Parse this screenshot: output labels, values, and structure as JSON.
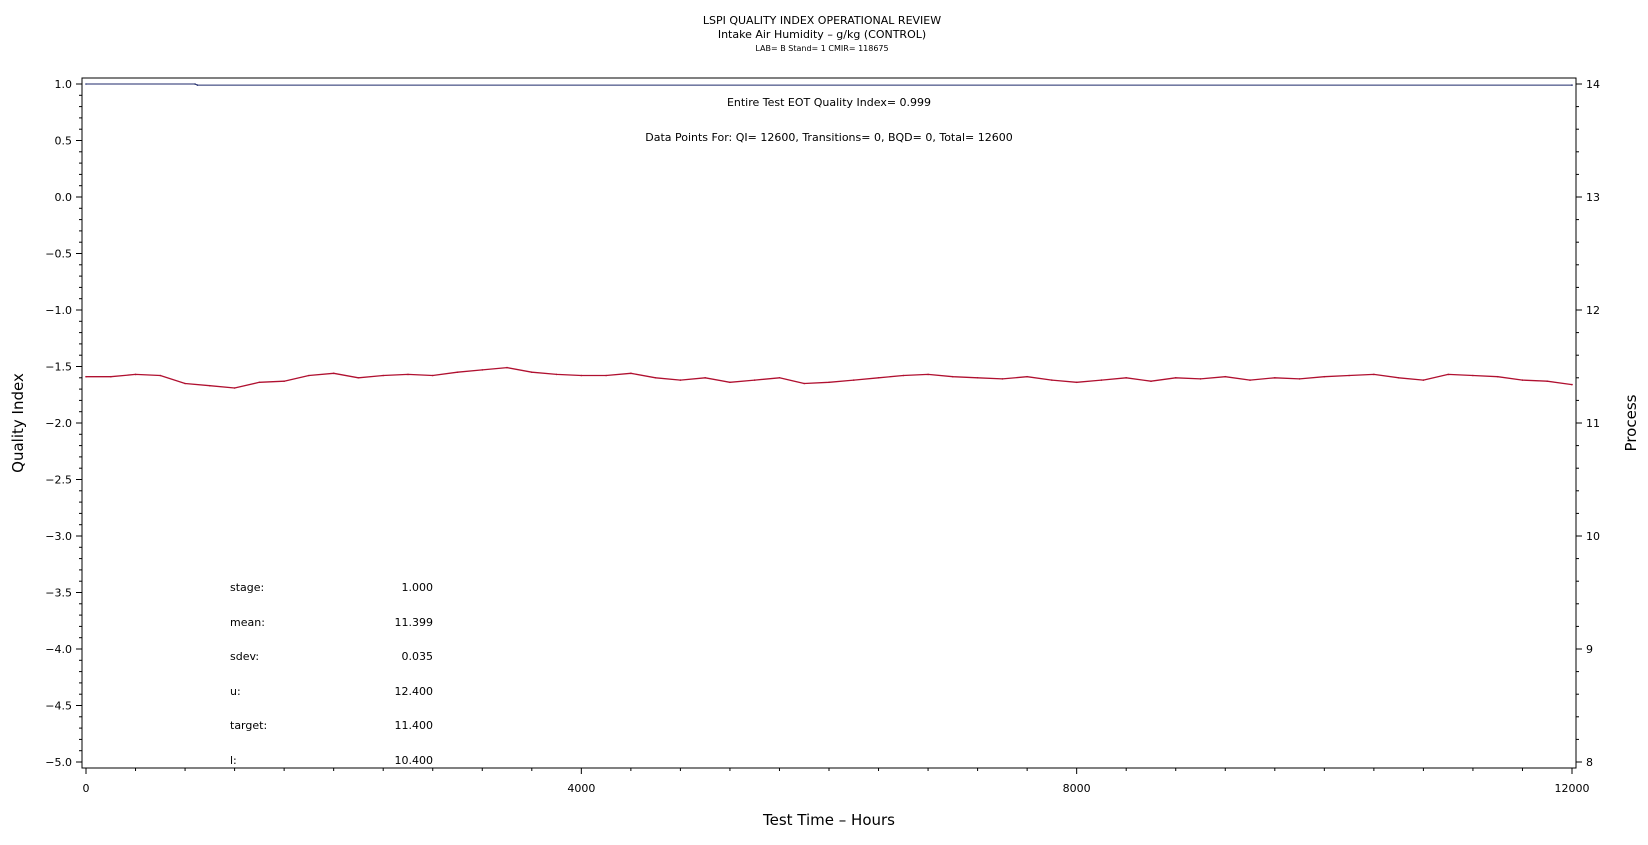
{
  "header": {
    "title": "LSPI QUALITY INDEX OPERATIONAL REVIEW",
    "subtitle": "Intake Air Humidity – g/kg (CONTROL)",
    "meta": "LAB= B Stand= 1 CMIR= 118675"
  },
  "annotations": {
    "eot": "Entire Test EOT Quality Index=   0.999",
    "points": "Data Points For: QI= 12600, Transitions=     0, BQD=     0, Total= 12600"
  },
  "stats": [
    {
      "label": "stage:",
      "value": "1.000"
    },
    {
      "label": "mean:",
      "value": "11.399"
    },
    {
      "label": "sdev:",
      "value": "0.035"
    },
    {
      "label": "u:",
      "value": "12.400"
    },
    {
      "label": "target:",
      "value": "11.400"
    },
    {
      "label": "l:",
      "value": "10.400"
    }
  ],
  "colors": {
    "quality": "#1f2a6b",
    "process": "#b01030"
  },
  "chart_data": {
    "type": "line",
    "xlabel": "Test Time – Hours",
    "ylabel": "Quality Index",
    "y2label": "Process",
    "xlim": [
      0,
      12000
    ],
    "ylim": [
      -5,
      1
    ],
    "y2lim": [
      8,
      14
    ],
    "xticks": [
      0,
      4000,
      8000,
      12000
    ],
    "yticks": [
      1.0,
      0.5,
      0.0,
      -0.5,
      -1.0,
      -1.5,
      -2.0,
      -2.5,
      -3.0,
      -3.5,
      -4.0,
      -4.5,
      -5.0
    ],
    "ytick_labels": [
      "1.0",
      "0.5",
      "0.0",
      "−0.5",
      "−1.0",
      "−1.5",
      "−2.0",
      "−2.5",
      "−3.0",
      "−3.5",
      "−4.0",
      "−4.5",
      "−5.0"
    ],
    "y2ticks": [
      14,
      13,
      12,
      11,
      10,
      9,
      8
    ],
    "y2tick_labels": [
      "14",
      "13",
      "12",
      "11",
      "10",
      "9",
      "8"
    ],
    "grid": false,
    "series": [
      {
        "axis": "left",
        "x": [
          0,
          880,
          900,
          12000
        ],
        "y": [
          1.0,
          1.0,
          0.99,
          0.99
        ]
      },
      {
        "axis": "right",
        "x": [
          0,
          200,
          400,
          600,
          800,
          1000,
          1200,
          1400,
          1600,
          1800,
          2000,
          2200,
          2400,
          2600,
          2800,
          3000,
          3200,
          3400,
          3600,
          3800,
          4000,
          4200,
          4400,
          4600,
          4800,
          5000,
          5200,
          5400,
          5600,
          5800,
          6000,
          6200,
          6400,
          6600,
          6800,
          7000,
          7200,
          7400,
          7600,
          7800,
          8000,
          8200,
          8400,
          8600,
          8800,
          9000,
          9200,
          9400,
          9600,
          9800,
          10000,
          10200,
          10400,
          10600,
          10800,
          11000,
          11200,
          11400,
          11600,
          11800,
          12000
        ],
        "y": [
          11.41,
          11.41,
          11.43,
          11.42,
          11.35,
          11.33,
          11.31,
          11.36,
          11.37,
          11.42,
          11.44,
          11.4,
          11.42,
          11.43,
          11.42,
          11.45,
          11.47,
          11.49,
          11.45,
          11.43,
          11.42,
          11.42,
          11.44,
          11.4,
          11.38,
          11.4,
          11.36,
          11.38,
          11.4,
          11.35,
          11.36,
          11.38,
          11.4,
          11.42,
          11.43,
          11.41,
          11.4,
          11.39,
          11.41,
          11.38,
          11.36,
          11.38,
          11.4,
          11.37,
          11.4,
          11.39,
          11.41,
          11.38,
          11.4,
          11.39,
          11.41,
          11.42,
          11.43,
          11.4,
          11.38,
          11.43,
          11.42,
          11.41,
          11.38,
          11.37,
          11.34
        ]
      }
    ]
  }
}
